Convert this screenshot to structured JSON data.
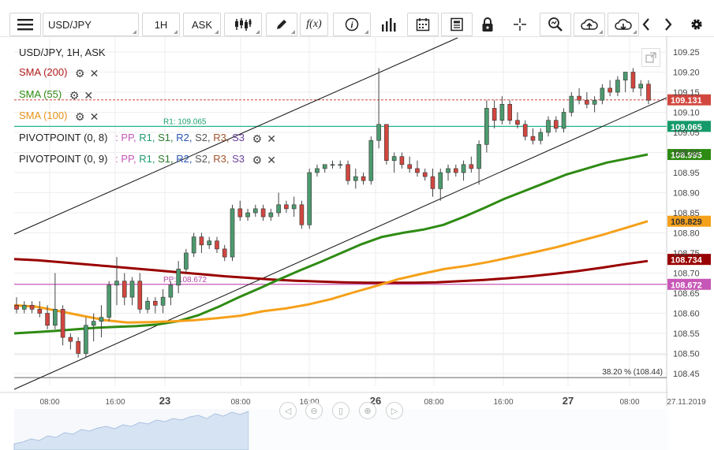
{
  "toolbar": {
    "symbol": "USD/JPY",
    "timeframe": "1H",
    "price_type": "ASK",
    "icons": [
      "menu-icon",
      "candlestick-type-icon",
      "draw-pencil-icon",
      "function-icon",
      "info-icon",
      "volume-bars-icon",
      "calendar-icon",
      "news-icon",
      "lock-icon",
      "crosshair-icon",
      "zoom-icon",
      "upload-icon",
      "download-icon",
      "chevron-left-icon",
      "chevron-right-icon",
      "gear-icon"
    ],
    "function_label": "f(x)"
  },
  "legend": {
    "title": "USD/JPY, 1H, ASK",
    "sma200": "SMA (200)",
    "sma55": "SMA (55)",
    "sma100": "SMA (100)",
    "pivot1_name": "PIVOTPOINT (0, 8)",
    "pivot2_name": "PIVOTPOINT (0, 9)",
    "pivot_sep": ":",
    "pivot_levels": [
      "PP,",
      "R1,",
      "S1,",
      "R2,",
      "S2,",
      "R3,",
      "S3"
    ]
  },
  "colors": {
    "bull": "#4d9a6f",
    "bear": "#d1473f",
    "sma200": "#990000",
    "sma55": "#2e8b13",
    "sma100": "#f5a01a",
    "pivot_r1": "#27b48c",
    "pivot_pp": "#c757b7",
    "current": "#d1473f",
    "pp_label": "#b548a5",
    "r1_label": "#1da06e",
    "trend": "#111111",
    "fib": "#666666"
  },
  "chart_data": {
    "type": "candlestick",
    "symbol": "USD/JPY",
    "timeframe": "1H",
    "ylim": [
      108.43,
      109.27
    ],
    "y_ticks": [
      109.25,
      109.2,
      109.15,
      109.1,
      109.05,
      109.0,
      108.95,
      108.9,
      108.85,
      108.8,
      108.75,
      108.7,
      108.65,
      108.6,
      108.55,
      108.5,
      108.45
    ],
    "x_ticks": [
      "08:00",
      "16:00",
      "23",
      "08:00",
      "16:00",
      "26",
      "08:00",
      "16:00",
      "27",
      "08:00",
      "27.11.2019"
    ],
    "current_price": 109.131,
    "price_tags": [
      "109.131",
      "109.065",
      "108.995",
      "108.829",
      "108.734",
      "108.672"
    ],
    "pivot_labels": {
      "r1": "R1: 109.065",
      "pp": "PP: 108.672"
    },
    "fib_label": "38.20 % (108.44)",
    "candles": [
      [
        108.62,
        108.64,
        108.6,
        108.61
      ],
      [
        108.61,
        108.63,
        108.6,
        108.62
      ],
      [
        108.62,
        108.63,
        108.6,
        108.61
      ],
      [
        108.61,
        108.63,
        108.59,
        108.6
      ],
      [
        108.6,
        108.62,
        108.56,
        108.57
      ],
      [
        108.57,
        108.7,
        108.56,
        108.61
      ],
      [
        108.61,
        108.62,
        108.52,
        108.54
      ],
      [
        108.54,
        108.55,
        108.51,
        108.53
      ],
      [
        108.53,
        108.54,
        108.49,
        108.5
      ],
      [
        108.5,
        108.59,
        108.49,
        108.57
      ],
      [
        108.57,
        108.6,
        108.53,
        108.58
      ],
      [
        108.58,
        108.62,
        108.54,
        108.59
      ],
      [
        108.59,
        108.68,
        108.58,
        108.67
      ],
      [
        108.67,
        108.74,
        108.62,
        108.68
      ],
      [
        108.68,
        108.7,
        108.62,
        108.64
      ],
      [
        108.64,
        108.69,
        108.62,
        108.68
      ],
      [
        108.68,
        108.7,
        108.6,
        108.61
      ],
      [
        108.61,
        108.64,
        108.6,
        108.63
      ],
      [
        108.63,
        108.64,
        108.6,
        108.62
      ],
      [
        108.62,
        108.66,
        108.6,
        108.64
      ],
      [
        108.64,
        108.68,
        108.62,
        108.67
      ],
      [
        108.67,
        108.73,
        108.65,
        108.71
      ],
      [
        108.71,
        108.76,
        108.7,
        108.75
      ],
      [
        108.75,
        108.8,
        108.74,
        108.79
      ],
      [
        108.79,
        108.8,
        108.75,
        108.77
      ],
      [
        108.77,
        108.79,
        108.76,
        108.78
      ],
      [
        108.78,
        108.79,
        108.75,
        108.76
      ],
      [
        108.76,
        108.77,
        108.73,
        108.74
      ],
      [
        108.74,
        108.87,
        108.73,
        108.86
      ],
      [
        108.86,
        108.88,
        108.83,
        108.84
      ],
      [
        108.84,
        108.86,
        108.83,
        108.85
      ],
      [
        108.85,
        108.87,
        108.84,
        108.86
      ],
      [
        108.86,
        108.87,
        108.83,
        108.84
      ],
      [
        108.84,
        108.86,
        108.83,
        108.85
      ],
      [
        108.85,
        108.9,
        108.84,
        108.87
      ],
      [
        108.87,
        108.88,
        108.85,
        108.86
      ],
      [
        108.86,
        108.89,
        108.84,
        108.87
      ],
      [
        108.87,
        108.88,
        108.81,
        108.82
      ],
      [
        108.82,
        108.96,
        108.81,
        108.95
      ],
      [
        108.95,
        108.97,
        108.94,
        108.96
      ],
      [
        108.96,
        108.97,
        108.95,
        108.97
      ],
      [
        108.97,
        108.98,
        108.96,
        108.97
      ],
      [
        108.97,
        108.98,
        108.96,
        108.97
      ],
      [
        108.97,
        108.98,
        108.92,
        108.93
      ],
      [
        108.93,
        108.96,
        108.91,
        108.94
      ],
      [
        108.94,
        108.95,
        108.92,
        108.93
      ],
      [
        108.93,
        109.04,
        108.92,
        109.03
      ],
      [
        109.03,
        109.21,
        109.01,
        109.07
      ],
      [
        109.07,
        109.07,
        108.97,
        108.98
      ],
      [
        108.98,
        109.0,
        108.95,
        108.99
      ],
      [
        108.99,
        109.0,
        108.96,
        108.97
      ],
      [
        108.97,
        108.99,
        108.95,
        108.96
      ],
      [
        108.96,
        108.98,
        108.94,
        108.95
      ],
      [
        108.95,
        108.96,
        108.93,
        108.94
      ],
      [
        108.94,
        108.96,
        108.89,
        108.91
      ],
      [
        108.91,
        108.96,
        108.88,
        108.95
      ],
      [
        108.95,
        108.97,
        108.93,
        108.96
      ],
      [
        108.96,
        108.97,
        108.94,
        108.95
      ],
      [
        108.95,
        108.98,
        108.93,
        108.97
      ],
      [
        108.97,
        108.99,
        108.95,
        108.96
      ],
      [
        108.96,
        109.03,
        108.92,
        109.02
      ],
      [
        109.02,
        109.13,
        109.0,
        109.11
      ],
      [
        109.11,
        109.13,
        109.06,
        109.08
      ],
      [
        109.08,
        109.14,
        109.07,
        109.12
      ],
      [
        109.12,
        109.13,
        109.07,
        109.08
      ],
      [
        109.08,
        109.1,
        109.06,
        109.07
      ],
      [
        109.07,
        109.08,
        109.03,
        109.04
      ],
      [
        109.04,
        109.06,
        109.02,
        109.03
      ],
      [
        109.03,
        109.06,
        109.02,
        109.05
      ],
      [
        109.05,
        109.09,
        109.04,
        109.08
      ],
      [
        109.08,
        109.09,
        109.05,
        109.06
      ],
      [
        109.06,
        109.11,
        109.05,
        109.1
      ],
      [
        109.1,
        109.15,
        109.09,
        109.14
      ],
      [
        109.14,
        109.16,
        109.12,
        109.13
      ],
      [
        109.13,
        109.15,
        109.11,
        109.12
      ],
      [
        109.12,
        109.14,
        109.1,
        109.13
      ],
      [
        109.13,
        109.17,
        109.12,
        109.16
      ],
      [
        109.16,
        109.18,
        109.14,
        109.15
      ],
      [
        109.15,
        109.19,
        109.14,
        109.18
      ],
      [
        109.18,
        109.2,
        109.15,
        109.2
      ],
      [
        109.2,
        109.21,
        109.15,
        109.16
      ],
      [
        109.16,
        109.18,
        109.14,
        109.17
      ],
      [
        109.17,
        109.18,
        109.12,
        109.13
      ]
    ],
    "series": [
      {
        "name": "SMA (200)",
        "values": [
          108.735,
          108.732,
          108.727,
          108.722,
          108.717,
          108.712,
          108.707,
          108.702,
          108.697,
          108.692,
          108.688,
          108.684,
          108.681,
          108.679,
          108.677,
          108.676,
          108.676,
          108.676,
          108.677,
          108.68,
          108.683,
          108.687,
          108.692,
          108.698,
          108.705,
          108.713,
          108.722,
          108.73
        ]
      },
      {
        "name": "SMA (55)",
        "values": [
          108.55,
          108.553,
          108.556,
          108.56,
          108.564,
          108.566,
          108.568,
          108.572,
          108.58,
          108.595,
          108.616,
          108.64,
          108.662,
          108.685,
          108.707,
          108.728,
          108.75,
          108.772,
          108.79,
          108.8,
          108.808,
          108.82,
          108.84,
          108.862,
          108.885,
          108.905,
          108.925,
          108.945,
          108.96,
          108.975,
          108.985,
          108.995
        ]
      },
      {
        "name": "SMA (100)",
        "values": [
          108.62,
          108.616,
          108.605,
          108.594,
          108.583,
          108.577,
          108.578,
          108.58,
          108.583,
          108.588,
          108.594,
          108.605,
          108.612,
          108.622,
          108.635,
          108.652,
          108.668,
          108.685,
          108.698,
          108.71,
          108.718,
          108.728,
          108.74,
          108.752,
          108.765,
          108.78,
          108.795,
          108.812,
          108.829
        ]
      }
    ]
  }
}
